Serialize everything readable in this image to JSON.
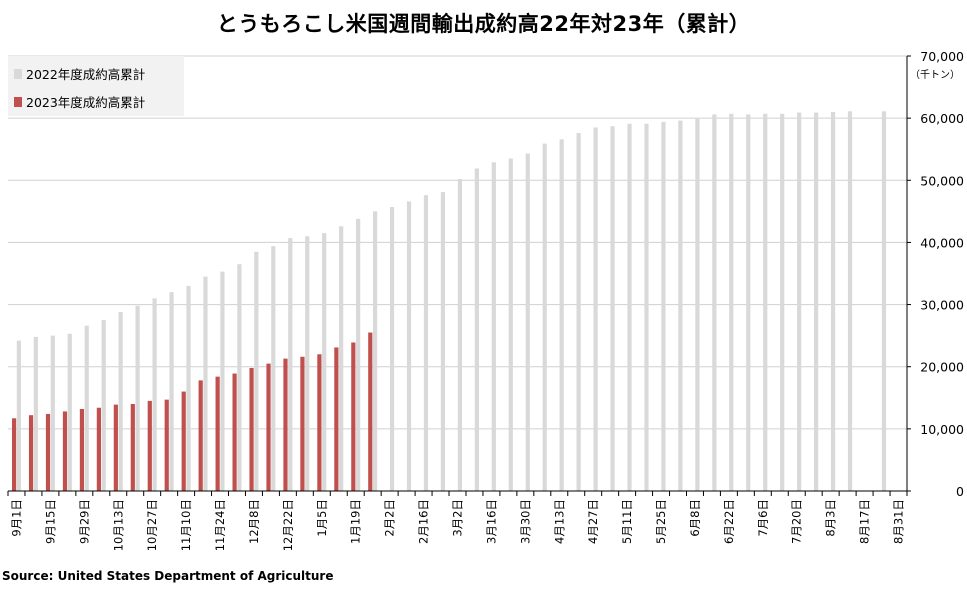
{
  "title": "とうもろこし米国週間輸出成約高22年対23年（累計）",
  "source": "Source: United States Department of Agriculture",
  "y_unit": "（千トン）",
  "colors": {
    "series_2022": "#d9d9d9",
    "series_2023": "#c0504d",
    "grid": "#d0d0d0",
    "axis": "#000000"
  },
  "chart_data": {
    "type": "bar",
    "ylim": [
      0,
      70000
    ],
    "y_ticks": [
      0,
      10000,
      20000,
      30000,
      40000,
      50000,
      60000,
      70000
    ],
    "y_tick_labels": [
      "0",
      "10,000",
      "20,000",
      "30,000",
      "40,000",
      "50,000",
      "60,000",
      "70,000"
    ],
    "grid": true,
    "legend_position": "top-left",
    "x_tick_labels": [
      "9月1日",
      "9月15日",
      "9月29日",
      "10月13日",
      "10月27日",
      "11月10日",
      "11月24日",
      "12月8日",
      "12月22日",
      "1月5日",
      "1月19日",
      "2月2日",
      "2月16日",
      "3月2日",
      "3月16日",
      "3月30日",
      "4月13日",
      "4月27日",
      "5月11日",
      "5月25日",
      "6月8日",
      "6月22日",
      "7月6日",
      "7月20日",
      "8月3日",
      "8月17日",
      "8月31日"
    ],
    "series": [
      {
        "name": "2022年度成約高累計",
        "values": [
          24200,
          24800,
          25000,
          25300,
          26600,
          27500,
          28800,
          29800,
          31000,
          32000,
          33000,
          34500,
          35300,
          36500,
          38500,
          39400,
          40700,
          41000,
          41500,
          42600,
          43800,
          45000,
          45700,
          46600,
          47600,
          48100,
          50200,
          51900,
          52900,
          53500,
          54300,
          55900,
          56600,
          57600,
          58500,
          58700,
          59100,
          59100,
          59400,
          59600,
          59900,
          60600,
          60700,
          60600,
          60700,
          60700,
          60900,
          60900,
          61000,
          61100,
          null,
          61100
        ]
      },
      {
        "name": "2023年度成約高累計",
        "values": [
          11700,
          12200,
          12400,
          12800,
          13200,
          13400,
          13900,
          14000,
          14500,
          14700,
          16000,
          17800,
          18400,
          18900,
          19800,
          20500,
          21300,
          21600,
          22000,
          23100,
          23900,
          25500
        ]
      }
    ]
  }
}
